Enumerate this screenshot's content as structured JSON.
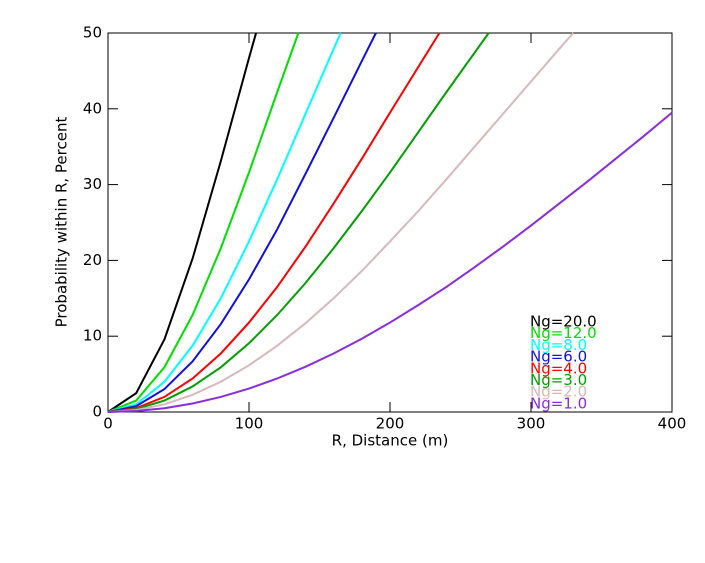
{
  "chart_data": {
    "type": "line",
    "xlabel": "R, Distance (m)",
    "ylabel": "Probability within R, Percent",
    "xlim": [
      0,
      400
    ],
    "ylim": [
      0,
      50
    ],
    "xticks": [
      0,
      100,
      200,
      300,
      400
    ],
    "yticks": [
      0,
      10,
      20,
      30,
      40,
      50
    ],
    "legend": "lower right",
    "series": [
      {
        "name": "Ng=20.0",
        "color": "#000000",
        "x": [
          0,
          20,
          40,
          60,
          80,
          100,
          105
        ],
        "values": [
          0,
          2.49,
          9.57,
          20.25,
          33.1,
          46.7,
          50
        ]
      },
      {
        "name": "Ng=12.0",
        "color": "#00e000",
        "x": [
          0,
          20,
          40,
          60,
          80,
          100,
          120,
          135
        ],
        "values": [
          0,
          1.51,
          5.9,
          12.8,
          21.6,
          31.6,
          42.2,
          50
        ]
      },
      {
        "name": "Ng=8.0",
        "color": "#00ffff",
        "x": [
          0,
          20,
          40,
          60,
          80,
          100,
          120,
          140,
          160,
          165
        ],
        "values": [
          0,
          1.01,
          3.99,
          8.75,
          15.0,
          22.5,
          30.7,
          39.3,
          47.9,
          50
        ]
      },
      {
        "name": "Ng=6.0",
        "color": "#1010e0",
        "x": [
          0,
          20,
          40,
          60,
          80,
          100,
          120,
          140,
          160,
          180,
          190
        ],
        "values": [
          0,
          0.77,
          3.02,
          6.68,
          11.6,
          17.5,
          24.1,
          31.4,
          38.8,
          46.3,
          50
        ]
      },
      {
        "name": "Ng=4.0",
        "color": "#ff0000",
        "x": [
          0,
          20,
          40,
          60,
          80,
          100,
          120,
          140,
          160,
          180,
          200,
          220,
          235
        ],
        "values": [
          0,
          0.5,
          1.99,
          4.42,
          7.72,
          11.8,
          16.5,
          21.8,
          27.5,
          33.4,
          39.5,
          45.5,
          50
        ]
      },
      {
        "name": "Ng=3.0",
        "color": "#00a000",
        "x": [
          0,
          20,
          40,
          60,
          80,
          100,
          120,
          140,
          160,
          180,
          200,
          220,
          240,
          260,
          270
        ],
        "values": [
          0,
          0.38,
          1.51,
          3.37,
          5.9,
          9.07,
          12.8,
          17.0,
          21.6,
          26.5,
          31.6,
          36.9,
          42.2,
          47.4,
          50
        ]
      },
      {
        "name": "Ng=2.0",
        "color": "#d8b8b8",
        "x": [
          0,
          20,
          40,
          60,
          80,
          100,
          120,
          140,
          160,
          180,
          200,
          220,
          240,
          260,
          280,
          300,
          320,
          330
        ],
        "values": [
          0,
          0.25,
          1.01,
          2.27,
          3.99,
          6.16,
          8.75,
          11.7,
          15.0,
          18.6,
          22.5,
          26.5,
          30.7,
          35.0,
          39.3,
          43.6,
          47.9,
          50
        ]
      },
      {
        "name": "Ng=1.0",
        "color": "#8a2be2",
        "x": [
          0,
          20,
          40,
          60,
          80,
          100,
          120,
          140,
          160,
          180,
          200,
          220,
          240,
          260,
          280,
          300,
          320,
          340,
          360,
          380,
          400
        ],
        "values": [
          0,
          0.13,
          0.5,
          1.12,
          1.99,
          3.09,
          4.42,
          5.96,
          7.72,
          9.67,
          11.8,
          14.1,
          16.5,
          19.1,
          21.8,
          24.6,
          27.5,
          30.4,
          33.4,
          36.4,
          39.5
        ]
      }
    ]
  }
}
